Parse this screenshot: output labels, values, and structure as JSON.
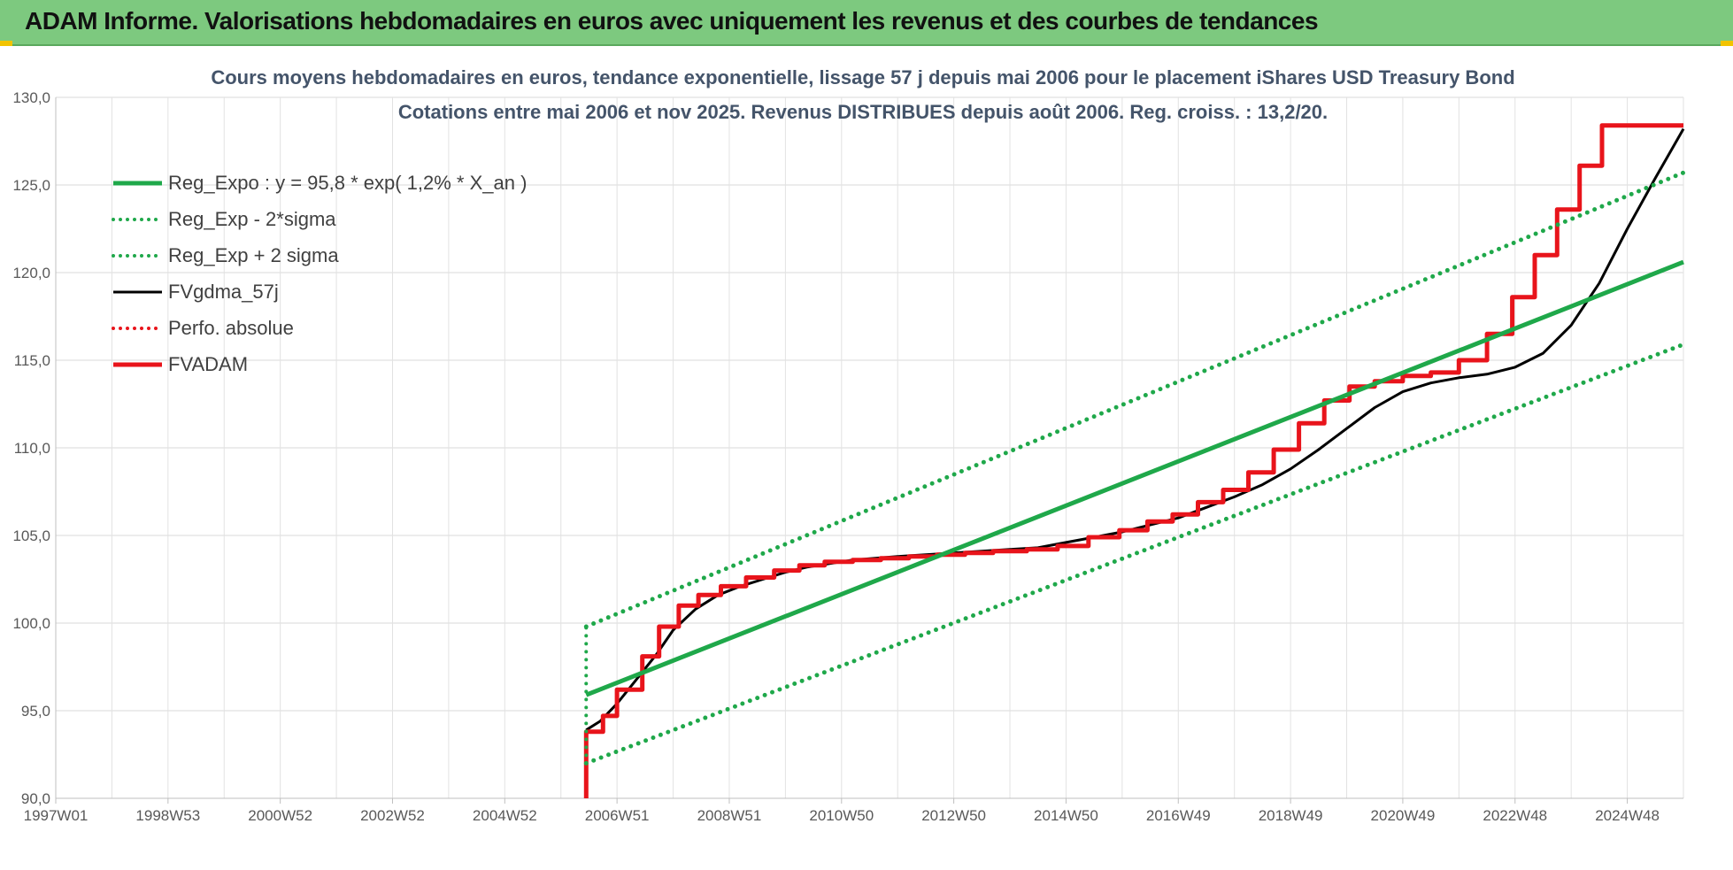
{
  "banner": {
    "title": "ADAM Informe. Valorisations hebdomadaires en euros avec uniquement les revenus et des courbes de tendances"
  },
  "chart_data": {
    "type": "line",
    "title": "Cours moyens hebdomadaires en euros, tendance exponentielle, lissage 57 j depuis mai 2006 pour le placement iShares USD Treasury Bond",
    "subtitle": "Cotations entre mai 2006 et nov 2025. Revenus DISTRIBUES depuis août 2006. Reg. croiss. : 13,2/20.",
    "xlabel": "",
    "ylabel": "",
    "xlim": [
      1997.0,
      2026.0
    ],
    "ylim": [
      90,
      130
    ],
    "grid": true,
    "legend_position": "top-left",
    "y_ticks": [
      {
        "value": 90,
        "label": "90,0"
      },
      {
        "value": 95,
        "label": "95,0"
      },
      {
        "value": 100,
        "label": "100,0"
      },
      {
        "value": 105,
        "label": "105,0"
      },
      {
        "value": 110,
        "label": "110,0"
      },
      {
        "value": 115,
        "label": "115,0"
      },
      {
        "value": 120,
        "label": "120,0"
      },
      {
        "value": 125,
        "label": "125,0"
      },
      {
        "value": 130,
        "label": "130,0"
      }
    ],
    "x_ticks": [
      {
        "value": 1997.0,
        "label": "1997W01"
      },
      {
        "value": 1999.0,
        "label": "1998W53"
      },
      {
        "value": 2001.0,
        "label": "2000W52"
      },
      {
        "value": 2003.0,
        "label": "2002W52"
      },
      {
        "value": 2005.0,
        "label": "2004W52"
      },
      {
        "value": 2007.0,
        "label": "2006W51"
      },
      {
        "value": 2009.0,
        "label": "2008W51"
      },
      {
        "value": 2011.0,
        "label": "2010W50"
      },
      {
        "value": 2013.0,
        "label": "2012W50"
      },
      {
        "value": 2015.0,
        "label": "2014W50"
      },
      {
        "value": 2017.0,
        "label": "2016W49"
      },
      {
        "value": 2019.0,
        "label": "2018W49"
      },
      {
        "value": 2021.0,
        "label": "2020W49"
      },
      {
        "value": 2023.0,
        "label": "2022W48"
      },
      {
        "value": 2025.0,
        "label": "2024W48"
      }
    ],
    "series": [
      {
        "name": "Reg_Expo : y = 95,8 * exp( 1,2% *  X_an )",
        "color": "#1fa84a",
        "style": "solid",
        "x": [
          2006.45,
          2026.0
        ],
        "y": [
          95.9,
          120.6
        ]
      },
      {
        "name": "Reg_Exp - 2*sigma",
        "color": "#1fa84a",
        "style": "dotted",
        "x": [
          2006.45,
          2026.0
        ],
        "y": [
          92.0,
          115.9
        ]
      },
      {
        "name": "Reg_Exp + 2 sigma",
        "color": "#1fa84a",
        "style": "dotted",
        "x": [
          2006.45,
          2026.0
        ],
        "y": [
          99.8,
          125.7
        ]
      },
      {
        "name": "FVgdma_57j",
        "color": "#000000",
        "style": "solid",
        "x": [
          2006.45,
          2006.7,
          2007.0,
          2007.3,
          2007.7,
          2008.0,
          2008.4,
          2008.8,
          2009.2,
          2009.6,
          2010.0,
          2010.4,
          2010.8,
          2011.2,
          2011.6,
          2012.0,
          2012.5,
          2013.0,
          2013.5,
          2014.0,
          2014.5,
          2015.0,
          2015.5,
          2016.0,
          2016.5,
          2017.0,
          2017.5,
          2018.0,
          2018.5,
          2019.0,
          2019.5,
          2020.0,
          2020.5,
          2021.0,
          2021.5,
          2022.0,
          2022.5,
          2023.0,
          2023.5,
          2024.0,
          2024.5,
          2025.0,
          2025.5,
          2026.0
        ],
        "y": [
          93.9,
          94.4,
          95.4,
          96.6,
          98.2,
          99.6,
          100.8,
          101.6,
          102.1,
          102.5,
          102.9,
          103.2,
          103.4,
          103.6,
          103.7,
          103.8,
          103.9,
          104.0,
          104.1,
          104.2,
          104.3,
          104.6,
          104.9,
          105.2,
          105.6,
          106.0,
          106.6,
          107.2,
          107.9,
          108.8,
          109.9,
          111.1,
          112.3,
          113.2,
          113.7,
          114.0,
          114.2,
          114.6,
          115.4,
          117.0,
          119.4,
          122.5,
          125.4,
          128.2
        ]
      },
      {
        "name": "Perfo. absolue",
        "color": "#e8141b",
        "style": "dotted",
        "x": [],
        "y": []
      },
      {
        "name": "FVADAM",
        "color": "#e8141b",
        "style": "step",
        "x": [
          2006.45,
          2006.45,
          2006.75,
          2007.0,
          2007.45,
          2007.75,
          2008.1,
          2008.45,
          2008.85,
          2009.3,
          2009.8,
          2010.25,
          2010.7,
          2011.2,
          2011.7,
          2012.2,
          2012.7,
          2013.2,
          2013.7,
          2014.3,
          2014.85,
          2015.4,
          2015.95,
          2016.45,
          2016.9,
          2017.35,
          2017.8,
          2018.25,
          2018.7,
          2019.15,
          2019.6,
          2020.05,
          2020.5,
          2021.0,
          2021.5,
          2022.0,
          2022.5,
          2022.95,
          2023.35,
          2023.75,
          2024.15,
          2024.55,
          2024.95,
          2025.35,
          2025.75,
          2026.0
        ],
        "y": [
          90.0,
          93.8,
          94.7,
          96.2,
          98.1,
          99.8,
          101.0,
          101.6,
          102.1,
          102.6,
          103.0,
          103.3,
          103.5,
          103.6,
          103.7,
          103.8,
          103.9,
          104.0,
          104.1,
          104.2,
          104.4,
          104.9,
          105.3,
          105.8,
          106.2,
          106.9,
          107.6,
          108.6,
          109.9,
          111.4,
          112.7,
          113.5,
          113.8,
          114.1,
          114.3,
          115.0,
          116.5,
          118.6,
          121.0,
          123.6,
          126.1,
          128.4,
          128.4,
          128.4,
          128.4,
          128.4
        ]
      }
    ]
  }
}
